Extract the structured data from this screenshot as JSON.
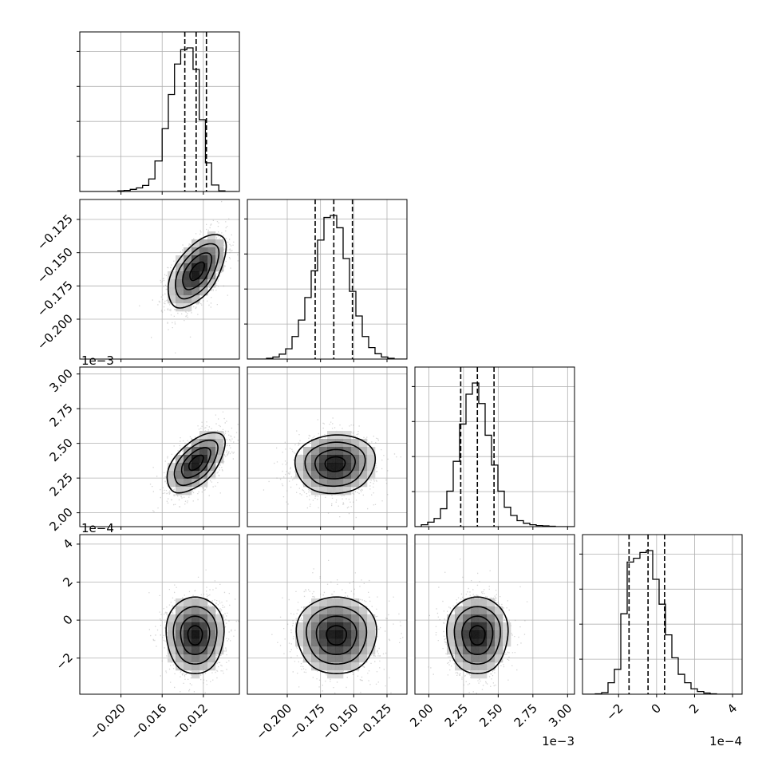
{
  "chart_data": {
    "type": "corner",
    "parameters": [
      {
        "range": [
          -0.024,
          -0.0085
        ],
        "ticks": [
          -0.02,
          -0.016,
          -0.012
        ],
        "tick_labels": [
          "−0.020",
          "−0.016",
          "−0.012"
        ],
        "offset_label": "",
        "quantiles": [
          -0.0138,
          -0.0127,
          -0.0117
        ],
        "hist": {
          "edges": [
            -0.024,
            -0.0234,
            -0.0228,
            -0.0222,
            -0.0216,
            -0.021,
            -0.0203,
            -0.0197,
            -0.0191,
            -0.0185,
            -0.0179,
            -0.0173,
            -0.0167,
            -0.016,
            -0.0154,
            -0.0148,
            -0.0142,
            -0.0136,
            -0.013,
            -0.0124,
            -0.0118,
            -0.0112,
            -0.0105,
            -0.0099,
            -0.0093,
            -0.0087
          ],
          "counts": [
            0,
            0,
            0,
            0,
            0,
            0,
            2,
            3,
            6,
            10,
            17,
            35,
            85,
            175,
            270,
            355,
            395,
            400,
            340,
            200,
            80,
            18,
            2,
            0,
            0
          ]
        }
      },
      {
        "range": [
          -0.23,
          -0.11
        ],
        "ticks": [
          -0.2,
          -0.175,
          -0.15,
          -0.125
        ],
        "tick_labels": [
          "−0.200",
          "−0.175",
          "−0.150",
          "−0.125"
        ],
        "offset_label": "",
        "quantiles": [
          -0.179,
          -0.165,
          -0.151
        ],
        "hist": {
          "edges": [
            -0.23,
            -0.2252,
            -0.2204,
            -0.2156,
            -0.2108,
            -0.206,
            -0.2012,
            -0.1964,
            -0.1916,
            -0.1868,
            -0.182,
            -0.1772,
            -0.1724,
            -0.1676,
            -0.1628,
            -0.158,
            -0.1532,
            -0.1484,
            -0.1436,
            -0.1388,
            -0.134,
            -0.1292,
            -0.1244,
            -0.1196,
            -0.1148,
            -0.11
          ],
          "counts": [
            0,
            0,
            0,
            2,
            5,
            12,
            25,
            55,
            95,
            150,
            215,
            290,
            345,
            350,
            320,
            245,
            165,
            105,
            55,
            28,
            13,
            5,
            2,
            0,
            0
          ]
        }
      },
      {
        "range": [
          1.9,
          3.05
        ],
        "ticks": [
          2.0,
          2.25,
          2.5,
          2.75,
          3.0
        ],
        "tick_labels": [
          "2.00",
          "2.25",
          "2.50",
          "2.75",
          "3.00"
        ],
        "offset_label": "1e−3",
        "quantiles": [
          2.23,
          2.35,
          2.47
        ],
        "hist": {
          "edges": [
            1.9,
            1.946,
            1.992,
            2.038,
            2.084,
            2.13,
            2.176,
            2.222,
            2.268,
            2.314,
            2.36,
            2.406,
            2.452,
            2.498,
            2.544,
            2.59,
            2.636,
            2.682,
            2.728,
            2.774,
            2.82,
            2.866,
            2.912,
            2.958,
            3.004,
            3.05
          ],
          "counts": [
            0,
            5,
            12,
            22,
            48,
            95,
            175,
            275,
            355,
            385,
            330,
            245,
            165,
            95,
            52,
            30,
            16,
            9,
            5,
            3,
            2,
            1,
            0,
            0,
            0
          ]
        }
      },
      {
        "range": [
          -3.9,
          4.5
        ],
        "ticks": [
          -2,
          0,
          2,
          4
        ],
        "tick_labels": [
          "−2",
          "0",
          "2",
          "4"
        ],
        "offset_label": "1e−4",
        "quantiles": [
          -1.45,
          -0.45,
          0.42
        ],
        "hist": {
          "edges": [
            -3.9,
            -3.564,
            -3.228,
            -2.892,
            -2.556,
            -2.22,
            -1.884,
            -1.548,
            -1.212,
            -0.876,
            -0.54,
            -0.204,
            0.132,
            0.468,
            0.804,
            1.14,
            1.476,
            1.812,
            2.148,
            2.484,
            2.82,
            3.156,
            3.492,
            3.828,
            4.164,
            4.5
          ],
          "counts": [
            0,
            0,
            1,
            4,
            30,
            65,
            210,
            345,
            355,
            370,
            375,
            300,
            235,
            155,
            95,
            52,
            30,
            14,
            7,
            3,
            1,
            0,
            0,
            0,
            0
          ]
        }
      }
    ],
    "pairs": [
      {
        "row": 1,
        "col": 0,
        "center": [
          -0.0126,
          -0.164
        ],
        "sd": [
          0.0014,
          0.014
        ],
        "rho": 0.55
      },
      {
        "row": 2,
        "col": 0,
        "center": [
          -0.0127,
          2.36
        ],
        "sd": [
          0.0014,
          0.11
        ],
        "rho": 0.55
      },
      {
        "row": 2,
        "col": 1,
        "center": [
          -0.164,
          2.35
        ],
        "sd": [
          0.015,
          0.11
        ],
        "rho": 0.05
      },
      {
        "row": 3,
        "col": 0,
        "center": [
          -0.0128,
          -0.8
        ],
        "sd": [
          0.0014,
          1.05
        ],
        "rho": 0.0
      },
      {
        "row": 3,
        "col": 1,
        "center": [
          -0.163,
          -0.8
        ],
        "sd": [
          0.015,
          1.05
        ],
        "rho": 0.0
      },
      {
        "row": 3,
        "col": 2,
        "center": [
          2.35,
          -0.8
        ],
        "sd": [
          0.11,
          1.05
        ],
        "rho": 0.0
      }
    ],
    "contour_levels_sigma": [
      0.5,
      1.0,
      1.5,
      2.0
    ],
    "grid": true,
    "quantile_line_style": "dashed"
  }
}
